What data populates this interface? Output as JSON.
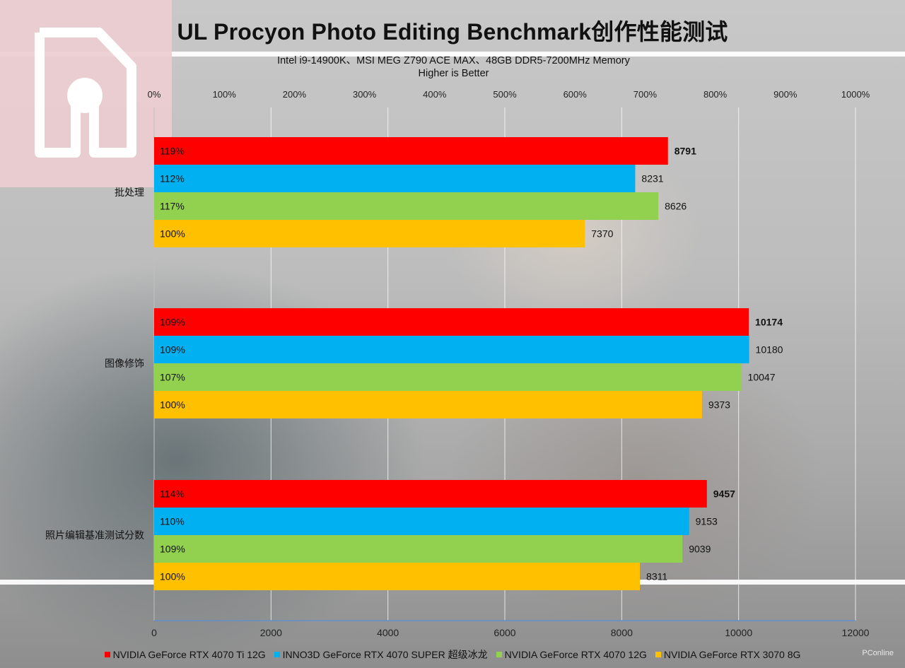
{
  "chart_data": {
    "type": "bar",
    "orientation": "horizontal",
    "title": "UL Procyon Photo Editing Benchmark创作性能测试",
    "subtitle_lines": [
      "Intel i9-14900K、MSI MEG Z790 ACE MAX、48GB DDR5-7200MHz Memory",
      "Higher is Better"
    ],
    "categories": [
      "批处理",
      "图像修饰",
      "照片编辑基准测试分数"
    ],
    "series": [
      {
        "name": "NVIDIA GeForce RTX 4070 Ti 12G",
        "color": "#ff0000",
        "values": [
          8791,
          10174,
          9457
        ],
        "percents": [
          "119%",
          "109%",
          "114%"
        ],
        "bold_value": true
      },
      {
        "name": "INNO3D GeForce RTX 4070 SUPER 超级冰龙",
        "color": "#00b0f0",
        "values": [
          8231,
          10180,
          9153
        ],
        "percents": [
          "112%",
          "109%",
          "110%"
        ],
        "bold_value": false
      },
      {
        "name": "NVIDIA GeForce RTX 4070 12G",
        "color": "#92d050",
        "values": [
          8626,
          10047,
          9039
        ],
        "percents": [
          "117%",
          "107%",
          "109%"
        ],
        "bold_value": false
      },
      {
        "name": "NVIDIA GeForce RTX 3070 8G",
        "color": "#ffc000",
        "values": [
          7370,
          9373,
          8311
        ],
        "percents": [
          "100%",
          "100%",
          "100%"
        ],
        "bold_value": false
      }
    ],
    "x_axis_bottom": {
      "range": [
        0,
        12000
      ],
      "ticks": [
        "0",
        "2000",
        "4000",
        "6000",
        "8000",
        "10000",
        "12000"
      ]
    },
    "x_axis_top": {
      "range": [
        0,
        1000
      ],
      "ticks": [
        "0%",
        "100%",
        "200%",
        "300%",
        "400%",
        "500%",
        "600%",
        "700%",
        "800%",
        "900%",
        "1000%"
      ]
    },
    "grid": true,
    "legend_position": "bottom"
  },
  "watermark": "PConline"
}
